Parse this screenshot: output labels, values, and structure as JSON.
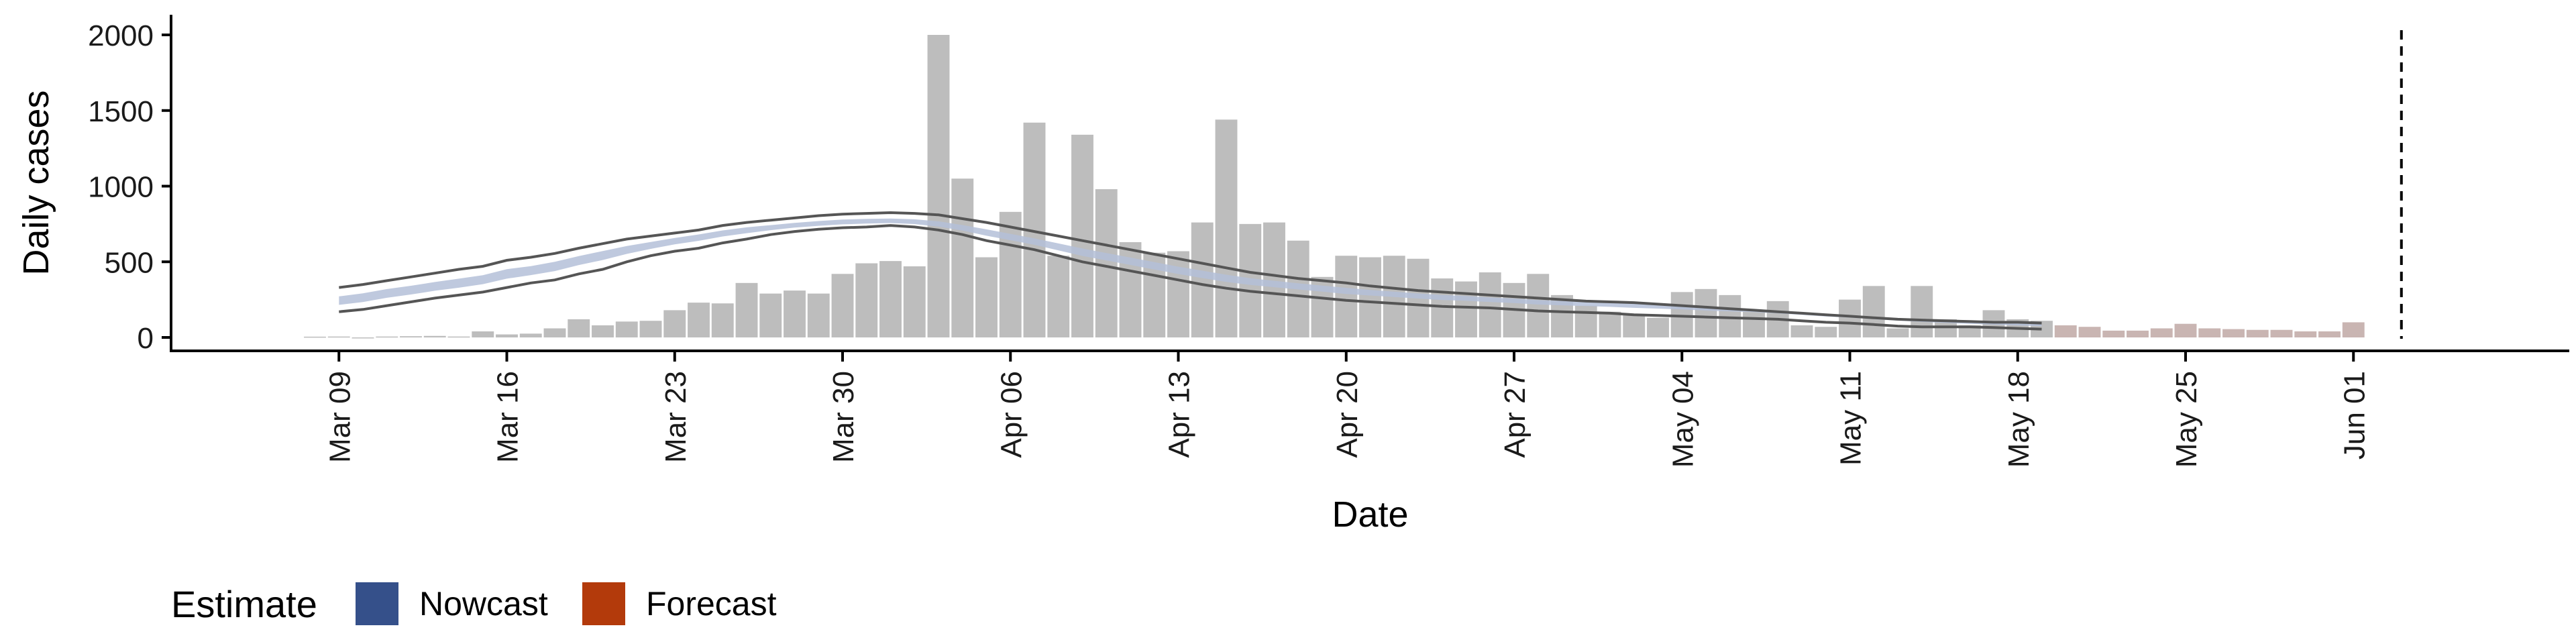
{
  "chart_data": {
    "type": "bar",
    "xlabel": "Date",
    "ylabel": "Daily cases",
    "ylim": [
      0,
      2100
    ],
    "yticks": [
      0,
      500,
      1000,
      1500,
      2000
    ],
    "ytick_labels": [
      "0",
      "500",
      "1000",
      "1500",
      "2000"
    ],
    "xticks": [
      "2020-03-09",
      "2020-03-16",
      "2020-03-23",
      "2020-03-30",
      "2020-04-06",
      "2020-04-13",
      "2020-04-20",
      "2020-04-27",
      "2020-05-04",
      "2020-05-11",
      "2020-05-18",
      "2020-05-25",
      "2020-06-01"
    ],
    "xtick_labels": [
      "Mar 09",
      "Mar 16",
      "Mar 23",
      "Mar 30",
      "Apr 06",
      "Apr 13",
      "Apr 20",
      "Apr 27",
      "May 04",
      "May 11",
      "May 18",
      "May 25",
      "Jun 01"
    ],
    "xlim": [
      "2020-03-02",
      "2020-06-10"
    ],
    "grid": false,
    "legend_position": "bottom-left",
    "reference_line": "2020-06-03",
    "series": [
      {
        "name": "Daily cases",
        "kind": "bar",
        "start_date": "2020-03-08",
        "values": [
          5,
          6,
          0,
          6,
          8,
          10,
          6,
          40,
          20,
          25,
          60,
          120,
          80,
          105,
          110,
          180,
          230,
          225,
          360,
          290,
          310,
          290,
          420,
          490,
          505,
          470,
          2000,
          1050,
          530,
          830,
          1420,
          540,
          1340,
          980,
          630,
          560,
          570,
          760,
          1440,
          750,
          760,
          640,
          400,
          540,
          530,
          540,
          520,
          390,
          370,
          430,
          360,
          420,
          280,
          210,
          170,
          150,
          130,
          300,
          320,
          280,
          170,
          240,
          80,
          70,
          250,
          340,
          60,
          340,
          120,
          80,
          180,
          120,
          110,
          80,
          70,
          45,
          45,
          60,
          90,
          60,
          55,
          50,
          50,
          40,
          40,
          100
        ],
        "forecast_from": "2020-05-20"
      },
      {
        "name": "Nowcast",
        "kind": "interval",
        "start_date": "2020-03-09",
        "mid": [
          240,
          260,
          290,
          310,
          335,
          355,
          380,
          420,
          440,
          470,
          510,
          545,
          580,
          610,
          640,
          665,
          690,
          710,
          725,
          740,
          750,
          760,
          765,
          765,
          760,
          745,
          720,
          690,
          660,
          630,
          595,
          560,
          530,
          500,
          470,
          440,
          415,
          390,
          370,
          355,
          340,
          325,
          310,
          300,
          290,
          280,
          270,
          265,
          255,
          250,
          240,
          235,
          230,
          225,
          220,
          215,
          210,
          200,
          195,
          190,
          180,
          170,
          160,
          150,
          140,
          130,
          120,
          110,
          100,
          95,
          90,
          85
        ],
        "upper": [
          330,
          350,
          375,
          400,
          425,
          450,
          470,
          510,
          530,
          555,
          590,
          620,
          650,
          670,
          690,
          710,
          740,
          760,
          775,
          790,
          805,
          815,
          820,
          825,
          820,
          810,
          785,
          760,
          730,
          700,
          670,
          640,
          610,
          580,
          550,
          520,
          490,
          460,
          430,
          410,
          390,
          375,
          360,
          340,
          325,
          310,
          300,
          290,
          280,
          270,
          260,
          250,
          240,
          235,
          230,
          220,
          210,
          200,
          190,
          180,
          170,
          160,
          150,
          140,
          130,
          120,
          115,
          110,
          105,
          100,
          100,
          95
        ],
        "lower": [
          170,
          185,
          210,
          235,
          260,
          280,
          300,
          330,
          360,
          380,
          420,
          450,
          500,
          540,
          570,
          590,
          625,
          650,
          680,
          700,
          715,
          725,
          730,
          740,
          730,
          710,
          680,
          640,
          610,
          580,
          540,
          500,
          470,
          440,
          410,
          380,
          350,
          325,
          305,
          290,
          275,
          260,
          245,
          235,
          225,
          215,
          205,
          200,
          195,
          185,
          175,
          170,
          165,
          160,
          150,
          145,
          140,
          135,
          130,
          125,
          120,
          110,
          100,
          95,
          85,
          75,
          70,
          70,
          70,
          65,
          60,
          55
        ]
      },
      {
        "name": "Forecast",
        "kind": "interval",
        "values": []
      }
    ],
    "legend": {
      "title": "Estimate",
      "items": [
        {
          "label": "Nowcast",
          "color": "#35508A"
        },
        {
          "label": "Forecast",
          "color": "#B33A0B"
        }
      ]
    },
    "colors": {
      "bar": "#BDBDBD",
      "bar_forecast": "#C9B5B2",
      "ribbon": "#B4C0D8",
      "band_line": "#555555",
      "axis": "#000000",
      "reference_line": "#000000"
    }
  }
}
